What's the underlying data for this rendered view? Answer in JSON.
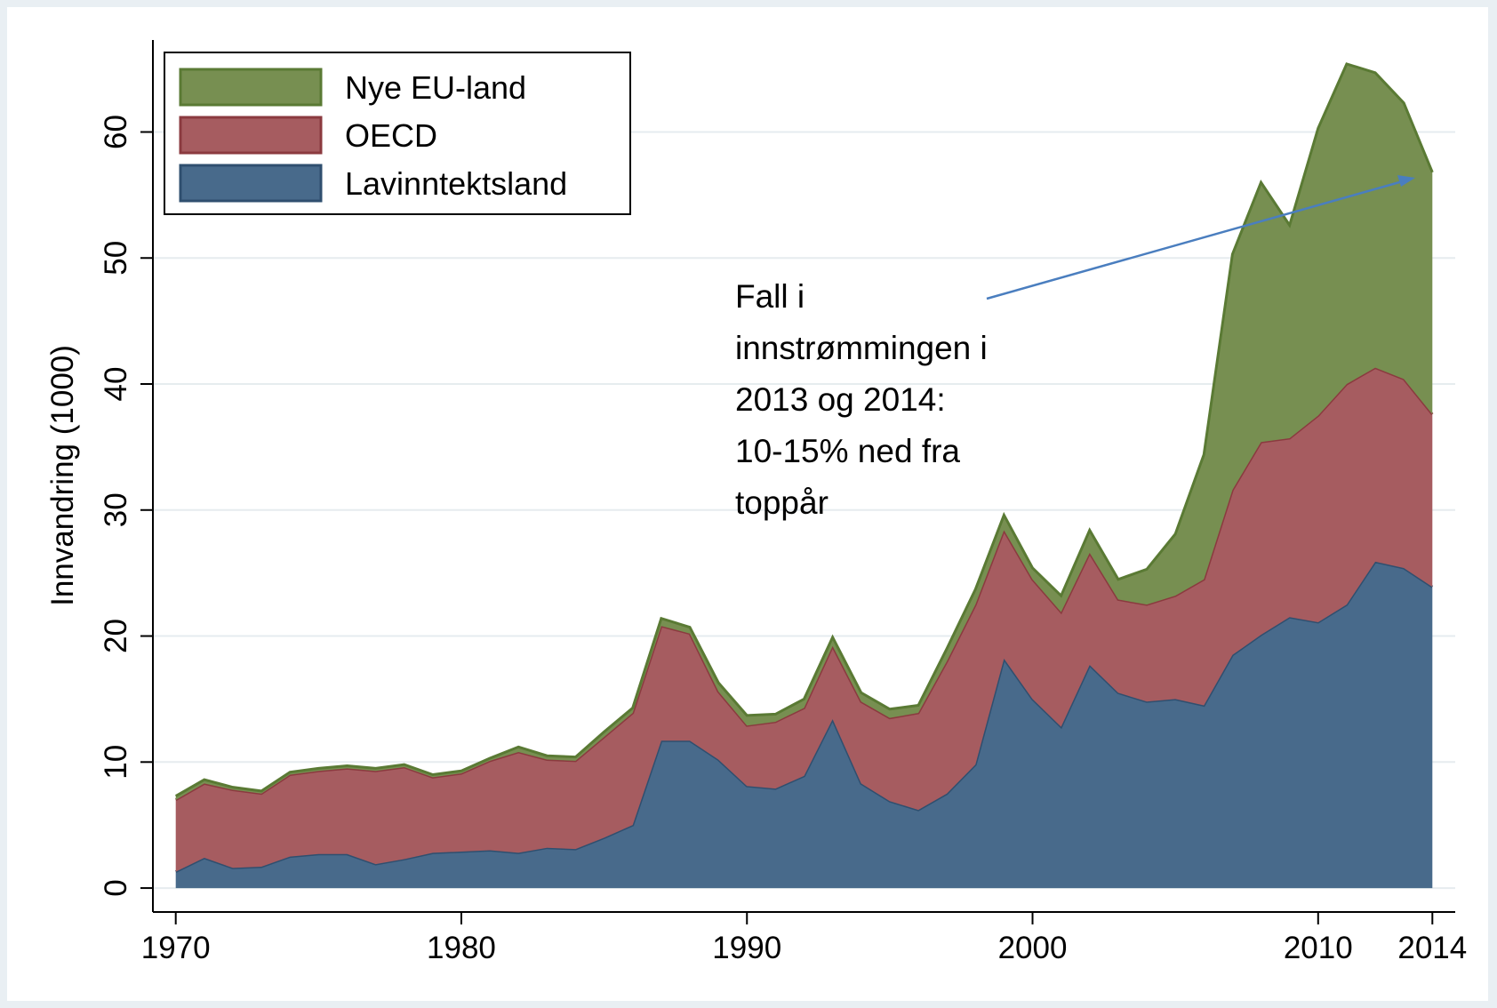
{
  "chart_data": {
    "type": "stacked_area",
    "x": [
      1970,
      1971,
      1972,
      1973,
      1974,
      1975,
      1976,
      1977,
      1978,
      1979,
      1980,
      1981,
      1982,
      1983,
      1984,
      1985,
      1986,
      1987,
      1988,
      1989,
      1990,
      1991,
      1992,
      1993,
      1994,
      1995,
      1996,
      1997,
      1998,
      1999,
      2000,
      2001,
      2002,
      2003,
      2004,
      2005,
      2006,
      2007,
      2008,
      2009,
      2010,
      2011,
      2012,
      2013,
      2014
    ],
    "series": [
      {
        "name": "Lavinntektsland",
        "color": "#486a8b",
        "values": [
          1.3,
          2.4,
          1.6,
          1.7,
          2.5,
          2.7,
          2.7,
          1.9,
          2.3,
          2.8,
          2.9,
          3.0,
          2.8,
          3.2,
          3.1,
          4.0,
          5.0,
          11.7,
          11.7,
          10.2,
          8.1,
          7.9,
          8.9,
          13.4,
          8.3,
          6.9,
          6.2,
          7.5,
          9.8,
          18.2,
          15.0,
          12.8,
          17.7,
          15.5,
          14.8,
          15.0,
          14.5,
          18.5,
          20.1,
          21.5,
          21.1,
          22.5,
          25.9,
          25.4,
          23.9
        ]
      },
      {
        "name": "OECD",
        "color": "#a65c60",
        "values": [
          5.7,
          5.9,
          6.2,
          5.8,
          6.5,
          6.6,
          6.8,
          7.4,
          7.3,
          6.0,
          6.2,
          7.1,
          8.0,
          7.0,
          7.0,
          8.0,
          8.9,
          9.1,
          8.5,
          5.4,
          4.8,
          5.3,
          5.4,
          5.8,
          6.5,
          6.6,
          7.7,
          10.5,
          12.7,
          10.2,
          9.5,
          9.1,
          8.9,
          7.4,
          7.7,
          8.2,
          10.0,
          13.1,
          15.3,
          14.2,
          16.4,
          17.5,
          15.4,
          15.0,
          13.7
        ]
      },
      {
        "name": "Nye EU-land",
        "color": "#778f51",
        "values": [
          0.3,
          0.3,
          0.2,
          0.2,
          0.2,
          0.2,
          0.2,
          0.2,
          0.2,
          0.2,
          0.2,
          0.2,
          0.4,
          0.3,
          0.3,
          0.4,
          0.4,
          0.6,
          0.5,
          0.7,
          0.8,
          0.6,
          0.7,
          0.7,
          0.7,
          0.7,
          0.6,
          1.0,
          1.2,
          1.2,
          0.9,
          1.3,
          1.8,
          1.6,
          2.8,
          4.9,
          9.9,
          18.7,
          20.6,
          16.9,
          22.8,
          25.4,
          23.4,
          21.9,
          19.2
        ]
      }
    ],
    "y_label": "Innvandring (1000)",
    "xlim": [
      1969.2,
      2014.8
    ],
    "xticks": [
      1970,
      1980,
      1990,
      2000,
      2010,
      2014
    ],
    "ylim": [
      -1.9,
      67.3
    ],
    "yticks": [
      0,
      10,
      20,
      30,
      40,
      50,
      60
    ],
    "grid": true,
    "annotation": [
      "Fall i",
      "innstrømmingen i",
      "2013 og 2014:",
      "10-15% ned fra",
      "toppår"
    ]
  }
}
